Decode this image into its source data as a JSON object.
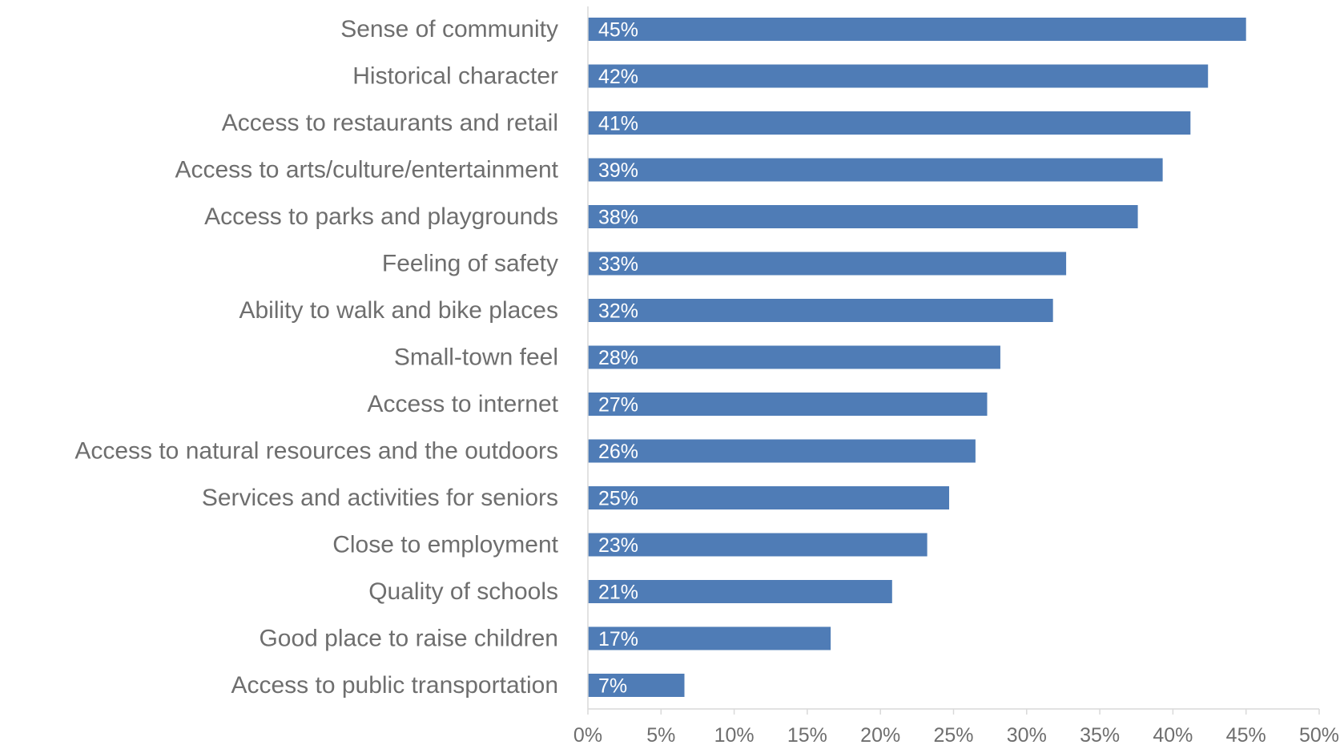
{
  "chart_data": {
    "type": "bar",
    "orientation": "horizontal",
    "categories": [
      "Sense of community",
      "Historical character",
      "Access to restaurants and retail",
      "Access to arts/culture/entertainment",
      "Access to parks and playgrounds",
      "Feeling of safety",
      "Ability to walk and bike places",
      "Small-town feel",
      "Access to internet",
      "Access to natural resources and the outdoors",
      "Services and activities for seniors",
      "Close to employment",
      "Quality of schools",
      "Good place to raise children",
      "Access to public transportation"
    ],
    "values": [
      45,
      42.4,
      41.2,
      39.3,
      37.6,
      32.7,
      31.8,
      28.2,
      27.3,
      26.5,
      24.7,
      23.2,
      20.8,
      16.6,
      6.6
    ],
    "data_labels": [
      "45%",
      "42%",
      "41%",
      "39%",
      "38%",
      "33%",
      "32%",
      "28%",
      "27%",
      "26%",
      "25%",
      "23%",
      "21%",
      "17%",
      "7%"
    ],
    "xlim": [
      0,
      50
    ],
    "xticks": [
      0,
      5,
      10,
      15,
      20,
      25,
      30,
      35,
      40,
      45,
      50
    ],
    "xtick_labels": [
      "0%",
      "5%",
      "10%",
      "15%",
      "20%",
      "25%",
      "30%",
      "35%",
      "40%",
      "45%",
      "50%"
    ],
    "title": "",
    "xlabel": "",
    "ylabel": "",
    "grid": false,
    "legend": "none",
    "bar_color": "#4f7cb6",
    "axis_color": "#d9d9d9",
    "label_color": "#6e6e6e"
  }
}
